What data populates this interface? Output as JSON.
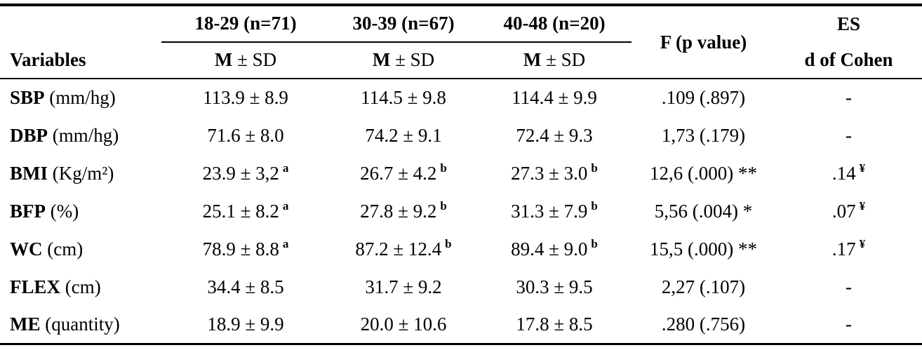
{
  "table": {
    "variables_header": "Variables",
    "groups": [
      {
        "range": "18-29 (n=71)",
        "m": "M",
        "sd": "± SD"
      },
      {
        "range": "30-39 (n=67)",
        "m": "M",
        "sd": "± SD"
      },
      {
        "range": "40-48 (n=20)",
        "m": "M",
        "sd": "± SD"
      }
    ],
    "f_header": "F (p value)",
    "es_header_line1": "ES",
    "es_header_line2": "d of Cohen",
    "rows": [
      {
        "name": "SBP",
        "unit": "(mm/hg)",
        "cells": [
          {
            "value": "113.9 ± 8.9",
            "sup": ""
          },
          {
            "value": "114.5 ± 9.8",
            "sup": ""
          },
          {
            "value": "114.4 ± 9.9",
            "sup": ""
          }
        ],
        "f": ".109 (.897)",
        "es": "-",
        "es_sup": ""
      },
      {
        "name": "DBP",
        "unit": "(mm/hg)",
        "cells": [
          {
            "value": "71.6 ± 8.0",
            "sup": ""
          },
          {
            "value": "74.2 ± 9.1",
            "sup": ""
          },
          {
            "value": "72.4 ± 9.3",
            "sup": ""
          }
        ],
        "f": "1,73 (.179)",
        "es": "-",
        "es_sup": ""
      },
      {
        "name": "BMI",
        "unit": "(Kg/m²)",
        "cells": [
          {
            "value": "23.9 ± 3,2",
            "sup": "a"
          },
          {
            "value": "26.7 ± 4.2",
            "sup": "b"
          },
          {
            "value": "27.3 ± 3.0",
            "sup": "b"
          }
        ],
        "f": "12,6 (.000) **",
        "es": ".14",
        "es_sup": "¥"
      },
      {
        "name": "BFP",
        "unit": "(%)",
        "cells": [
          {
            "value": "25.1 ± 8.2",
            "sup": "a"
          },
          {
            "value": "27.8 ± 9.2",
            "sup": "b"
          },
          {
            "value": "31.3 ± 7.9",
            "sup": "b"
          }
        ],
        "f": "5,56 (.004) *",
        "es": ".07",
        "es_sup": "¥"
      },
      {
        "name": "WC",
        "unit": "(cm)",
        "cells": [
          {
            "value": "78.9 ± 8.8",
            "sup": "a"
          },
          {
            "value": "87.2 ± 12.4",
            "sup": "b"
          },
          {
            "value": "89.4 ± 9.0",
            "sup": "b"
          }
        ],
        "f": "15,5 (.000) **",
        "es": ".17",
        "es_sup": "¥"
      },
      {
        "name": "FLEX",
        "unit": "(cm)",
        "cells": [
          {
            "value": "34.4 ± 8.5",
            "sup": ""
          },
          {
            "value": "31.7 ± 9.2",
            "sup": ""
          },
          {
            "value": "30.3 ± 9.5",
            "sup": ""
          }
        ],
        "f": "2,27 (.107)",
        "es": "-",
        "es_sup": ""
      },
      {
        "name": "ME",
        "unit": "(quantity)",
        "cells": [
          {
            "value": "18.9 ± 9.9",
            "sup": ""
          },
          {
            "value": "20.0 ± 10.6",
            "sup": ""
          },
          {
            "value": "17.8 ± 8.5",
            "sup": ""
          }
        ],
        "f": ".280 (.756)",
        "es": "-",
        "es_sup": ""
      }
    ]
  }
}
